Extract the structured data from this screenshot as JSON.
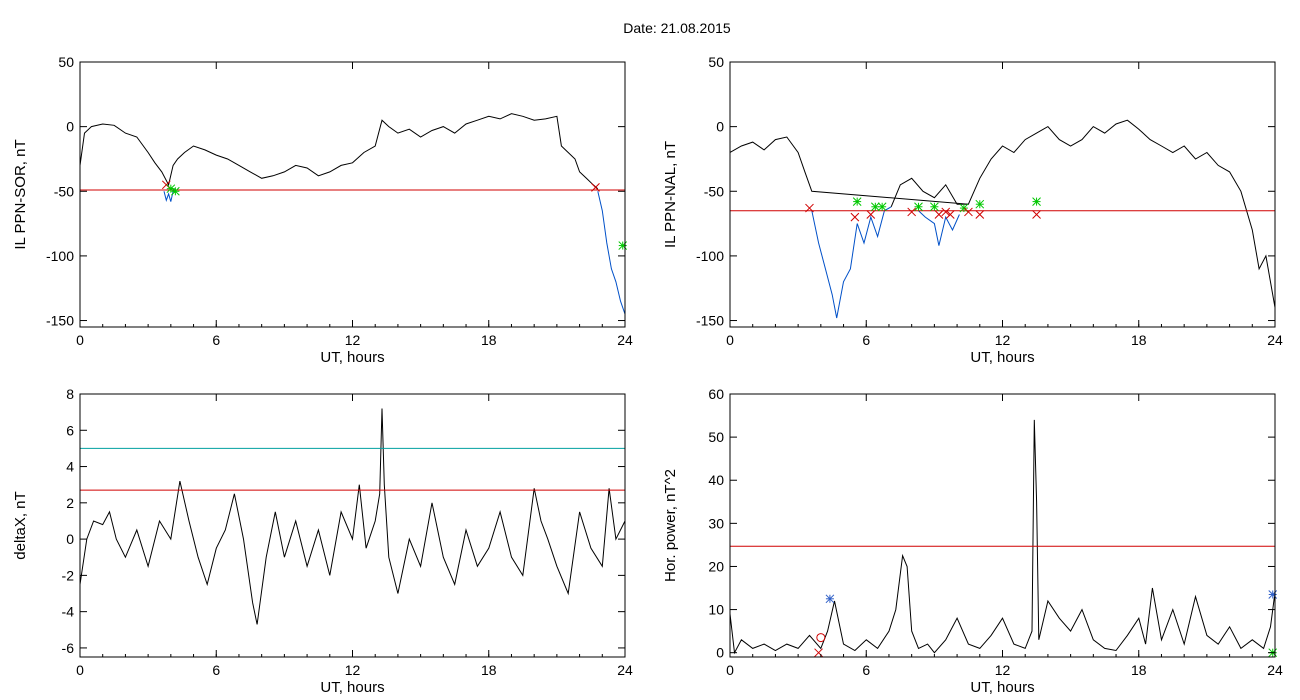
{
  "figure": {
    "title": "Date:  21.08.2015"
  },
  "chart_data": [
    {
      "type": "line",
      "xlabel": "UT, hours",
      "ylabel": "IL PPN-SOR, nT",
      "xlim": [
        0,
        24
      ],
      "ylim": [
        -155,
        50
      ],
      "xticks": [
        0,
        6,
        12,
        18,
        24
      ],
      "yticks": [
        50,
        0,
        -50,
        -100,
        -150
      ],
      "grid": false,
      "series": [
        {
          "color": "#000000",
          "x": [
            0,
            0.2,
            0.5,
            1,
            1.5,
            2,
            2.5,
            3,
            3.3,
            3.6,
            3.9,
            4.1,
            4.3,
            4.6,
            5,
            5.5,
            6,
            6.5,
            7,
            7.5,
            8,
            8.5,
            9,
            9.5,
            10,
            10.5,
            11,
            11.5,
            12,
            12.5,
            13,
            13.3,
            13.6,
            14,
            14.5,
            15,
            15.5,
            16,
            16.5,
            17,
            17.5,
            18,
            18.5,
            19,
            19.5,
            20,
            20.5,
            21,
            21.2,
            21.5,
            21.8,
            22,
            22.3,
            22.6,
            22.8
          ],
          "y": [
            -30,
            -5,
            0,
            2,
            1,
            -5,
            -8,
            -20,
            -28,
            -35,
            -45,
            -30,
            -25,
            -20,
            -15,
            -18,
            -22,
            -25,
            -30,
            -35,
            -40,
            -38,
            -35,
            -30,
            -32,
            -38,
            -35,
            -30,
            -28,
            -20,
            -15,
            5,
            0,
            -5,
            -2,
            -8,
            -3,
            0,
            -5,
            2,
            5,
            8,
            6,
            10,
            8,
            5,
            6,
            8,
            -15,
            -20,
            -25,
            -35,
            -40,
            -45,
            -48
          ]
        },
        {
          "color": "#0050c8",
          "x": [
            3.7,
            3.8,
            3.9,
            4.0,
            4.1,
            4.2
          ],
          "y": [
            -50,
            -57,
            -52,
            -58,
            -50,
            -48
          ]
        },
        {
          "color": "#0050c8",
          "x": [
            22.8,
            23.0,
            23.2,
            23.4,
            23.6,
            23.8,
            24
          ],
          "y": [
            -50,
            -65,
            -90,
            -110,
            -120,
            -135,
            -145
          ]
        },
        {
          "color": "#d00000",
          "x": [
            0,
            24
          ],
          "y": [
            -49,
            -49
          ]
        }
      ],
      "markers": [
        {
          "x": 3.8,
          "y": -45,
          "color": "#d00000",
          "symbol": "x"
        },
        {
          "x": 4.0,
          "y": -48,
          "color": "#00c800",
          "symbol": "asterisk"
        },
        {
          "x": 4.2,
          "y": -50,
          "color": "#00c800",
          "symbol": "asterisk"
        },
        {
          "x": 22.7,
          "y": -47,
          "color": "#d00000",
          "symbol": "x"
        },
        {
          "x": 23.9,
          "y": -92,
          "color": "#00c800",
          "symbol": "asterisk"
        }
      ]
    },
    {
      "type": "line",
      "xlabel": "UT, hours",
      "ylabel": "IL PPN-NAL, nT",
      "xlim": [
        0,
        24
      ],
      "ylim": [
        -155,
        50
      ],
      "xticks": [
        0,
        6,
        12,
        18,
        24
      ],
      "yticks": [
        50,
        0,
        -50,
        -100,
        -150
      ],
      "grid": false,
      "series": [
        {
          "color": "#000000",
          "x": [
            0,
            0.5,
            1,
            1.5,
            2,
            2.5,
            3,
            3.3,
            3.6,
            10.5,
            11,
            11.5,
            12,
            12.5,
            13,
            13.5,
            14,
            14.5,
            15,
            15.5,
            16,
            16.5,
            17,
            17.5,
            18,
            18.5,
            19,
            19.5,
            20,
            20.5,
            21,
            21.5,
            22,
            22.5,
            23,
            23.3,
            23.6,
            24
          ],
          "y": [
            -20,
            -15,
            -12,
            -18,
            -10,
            -8,
            -20,
            -35,
            -50,
            -60,
            -40,
            -25,
            -15,
            -20,
            -10,
            -5,
            0,
            -10,
            -15,
            -10,
            0,
            -5,
            2,
            5,
            -2,
            -10,
            -15,
            -20,
            -15,
            -25,
            -20,
            -30,
            -35,
            -50,
            -80,
            -110,
            -100,
            -140
          ]
        },
        {
          "color": "#0050c8",
          "x": [
            3.6,
            3.9,
            4.2,
            4.5,
            4.7,
            5.0,
            5.3,
            5.6,
            5.9,
            6.2,
            6.5,
            6.8,
            7.1
          ],
          "y": [
            -65,
            -90,
            -110,
            -130,
            -148,
            -120,
            -110,
            -75,
            -90,
            -70,
            -85,
            -65,
            -62
          ]
        },
        {
          "color": "#000000",
          "x": [
            7.1,
            7.5,
            8.0,
            8.5,
            9.0,
            9.5,
            10.0,
            10.5
          ],
          "y": [
            -62,
            -45,
            -40,
            -50,
            -55,
            -45,
            -60,
            -60
          ]
        },
        {
          "color": "#0050c8",
          "x": [
            8.3,
            8.6,
            9.0,
            9.2,
            9.5,
            9.8,
            10.1
          ],
          "y": [
            -65,
            -70,
            -75,
            -92,
            -70,
            -80,
            -68
          ]
        },
        {
          "color": "#d00000",
          "x": [
            0,
            24
          ],
          "y": [
            -65,
            -65
          ]
        }
      ],
      "markers": [
        {
          "x": 3.5,
          "y": -63,
          "color": "#d00000",
          "symbol": "x"
        },
        {
          "x": 5.5,
          "y": -70,
          "color": "#d00000",
          "symbol": "x"
        },
        {
          "x": 5.6,
          "y": -58,
          "color": "#00c800",
          "symbol": "asterisk"
        },
        {
          "x": 6.2,
          "y": -68,
          "color": "#d00000",
          "symbol": "x"
        },
        {
          "x": 6.4,
          "y": -62,
          "color": "#00c800",
          "symbol": "asterisk"
        },
        {
          "x": 6.7,
          "y": -62,
          "color": "#00c800",
          "symbol": "asterisk"
        },
        {
          "x": 8.0,
          "y": -66,
          "color": "#d00000",
          "symbol": "x"
        },
        {
          "x": 8.3,
          "y": -62,
          "color": "#00c800",
          "symbol": "asterisk"
        },
        {
          "x": 9.0,
          "y": -62,
          "color": "#00c800",
          "symbol": "asterisk"
        },
        {
          "x": 9.2,
          "y": -68,
          "color": "#d00000",
          "symbol": "x"
        },
        {
          "x": 9.5,
          "y": -66,
          "color": "#d00000",
          "symbol": "x"
        },
        {
          "x": 9.7,
          "y": -68,
          "color": "#d00000",
          "symbol": "x"
        },
        {
          "x": 10.3,
          "y": -63,
          "color": "#00c800",
          "symbol": "asterisk"
        },
        {
          "x": 10.5,
          "y": -66,
          "color": "#d00000",
          "symbol": "x"
        },
        {
          "x": 11.0,
          "y": -68,
          "color": "#d00000",
          "symbol": "x"
        },
        {
          "x": 11.0,
          "y": -60,
          "color": "#00c800",
          "symbol": "asterisk"
        },
        {
          "x": 13.5,
          "y": -68,
          "color": "#d00000",
          "symbol": "x"
        },
        {
          "x": 13.5,
          "y": -58,
          "color": "#00c800",
          "symbol": "asterisk"
        }
      ]
    },
    {
      "type": "line",
      "xlabel": "UT, hours",
      "ylabel": "deltaX, nT",
      "xlim": [
        0,
        24
      ],
      "ylim": [
        -6.5,
        8
      ],
      "xticks": [
        0,
        6,
        12,
        18,
        24
      ],
      "yticks": [
        8,
        6,
        4,
        2,
        0,
        -2,
        -4,
        -6
      ],
      "grid": false,
      "series": [
        {
          "color": "#000000",
          "x": [
            0,
            0.3,
            0.6,
            1,
            1.3,
            1.6,
            2,
            2.5,
            3,
            3.5,
            4,
            4.4,
            4.8,
            5.2,
            5.6,
            6,
            6.4,
            6.8,
            7.2,
            7.6,
            7.8,
            8.2,
            8.6,
            9,
            9.5,
            10,
            10.5,
            11,
            11.5,
            12,
            12.3,
            12.6,
            13,
            13.2,
            13.3,
            13.4,
            13.6,
            14,
            14.5,
            15,
            15.5,
            16,
            16.5,
            17,
            17.5,
            18,
            18.5,
            19,
            19.5,
            20,
            20.3,
            20.6,
            21,
            21.5,
            22,
            22.5,
            23,
            23.3,
            23.6,
            24
          ],
          "y": [
            -2.5,
            0,
            1,
            0.8,
            1.5,
            0,
            -1,
            0.5,
            -1.5,
            1,
            0,
            3.2,
            1,
            -1,
            -2.5,
            -0.5,
            0.5,
            2.5,
            0,
            -3.5,
            -4.7,
            -1,
            1.5,
            -1,
            1,
            -1.5,
            0.5,
            -2,
            1.5,
            0,
            3,
            -0.5,
            1,
            2.5,
            7.2,
            3,
            -1,
            -3,
            0,
            -1.5,
            2,
            -1,
            -2.5,
            0.5,
            -1.5,
            -0.5,
            1.5,
            -1,
            -2,
            2.8,
            1,
            0,
            -1.5,
            -3,
            1.5,
            -0.5,
            -1.5,
            2.8,
            0,
            1
          ]
        },
        {
          "color": "#00a0a0",
          "x": [
            0,
            24
          ],
          "y": [
            5,
            5
          ]
        },
        {
          "color": "#d00000",
          "x": [
            0,
            24
          ],
          "y": [
            2.7,
            2.7
          ]
        }
      ],
      "markers": []
    },
    {
      "type": "line",
      "xlabel": "UT, hours",
      "ylabel": "Hor. power, nT^2",
      "xlim": [
        0,
        24
      ],
      "ylim": [
        -1,
        60
      ],
      "xticks": [
        0,
        6,
        12,
        18,
        24
      ],
      "yticks": [
        60,
        50,
        40,
        30,
        20,
        10,
        0
      ],
      "grid": false,
      "series": [
        {
          "color": "#000000",
          "x": [
            0,
            0.2,
            0.5,
            1,
            1.5,
            2,
            2.5,
            3,
            3.5,
            4,
            4.3,
            4.6,
            5,
            5.5,
            6,
            6.5,
            7,
            7.3,
            7.6,
            7.8,
            8,
            8.3,
            8.7,
            9,
            9.5,
            10,
            10.5,
            11,
            11.5,
            12,
            12.5,
            13,
            13.3,
            13.4,
            13.5,
            13.6,
            14,
            14.5,
            15,
            15.5,
            16,
            16.5,
            17,
            17.5,
            18,
            18.3,
            18.6,
            19,
            19.5,
            20,
            20.5,
            21,
            21.5,
            22,
            22.5,
            23,
            23.5,
            23.8,
            24
          ],
          "y": [
            9,
            0,
            3,
            1,
            2,
            0.5,
            2,
            1,
            4,
            1,
            5,
            12,
            2,
            0.5,
            3,
            1,
            5,
            10,
            22.5,
            20,
            5,
            1,
            2,
            0,
            3,
            8,
            2,
            1,
            4,
            8,
            2,
            1,
            5,
            54,
            35,
            3,
            12,
            8,
            5,
            10,
            3,
            1,
            0.5,
            4,
            8,
            2,
            15,
            3,
            10,
            2,
            13,
            4,
            2,
            6,
            1,
            3,
            1,
            6,
            14
          ]
        },
        {
          "color": "#d00000",
          "x": [
            0,
            24
          ],
          "y": [
            24.7,
            24.7
          ]
        }
      ],
      "markers": [
        {
          "x": 4.0,
          "y": 3.5,
          "color": "#d00000",
          "symbol": "circle"
        },
        {
          "x": 3.9,
          "y": 0,
          "color": "#d00000",
          "symbol": "x"
        },
        {
          "x": 4.4,
          "y": 12.5,
          "color": "#3060c8",
          "symbol": "asterisk"
        },
        {
          "x": 23.9,
          "y": 13.5,
          "color": "#3060c8",
          "symbol": "asterisk"
        },
        {
          "x": 23.9,
          "y": 0,
          "color": "#00c800",
          "symbol": "asterisk"
        }
      ]
    }
  ]
}
